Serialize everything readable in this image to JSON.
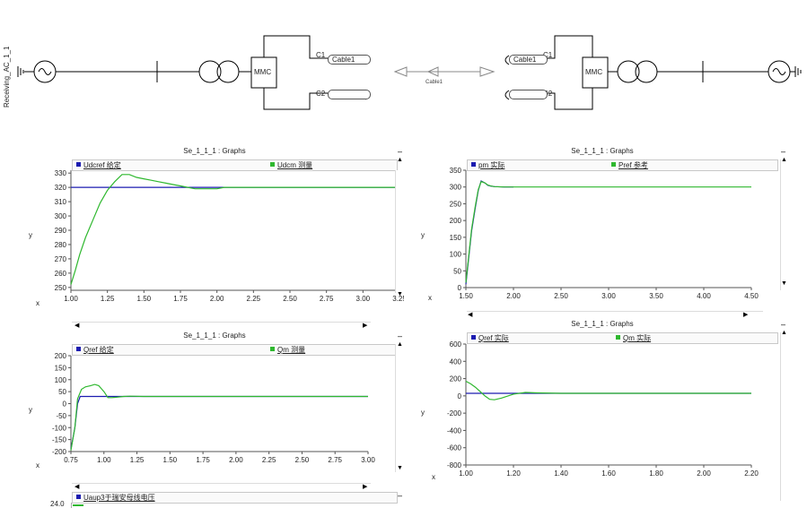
{
  "schematic": {
    "bus_label": "Receiving_AC_1_1",
    "mmc_left": "MMC",
    "mmc_right": "MMC",
    "c1_left": "C1",
    "c2_left": "C2",
    "c1_right": "C1",
    "c2_right": "C2",
    "cable_left": "Cable1",
    "cable_right": "Cable1",
    "cable_center": "Cable1"
  },
  "colors": {
    "blue": "#1c1cb0",
    "green": "#2fb82f",
    "axis": "#555555"
  },
  "chart_data": [
    {
      "type": "line",
      "title": "Se_1_1_1 : Graphs",
      "xlabel": "x",
      "ylabel": "y",
      "xlim": [
        1.0,
        3.25
      ],
      "ylim": [
        248,
        332
      ],
      "xticks": [
        1.0,
        1.25,
        1.5,
        1.75,
        2.0,
        2.25,
        2.5,
        2.75,
        3.0,
        3.25
      ],
      "yticks": [
        250,
        260,
        270,
        280,
        290,
        300,
        310,
        320,
        330
      ],
      "xdec": 2,
      "ydec": 0,
      "legend": [
        {
          "name": "Udcref 给定"
        },
        {
          "name": "Udcm 测量"
        }
      ],
      "series": [
        {
          "name": "Udcref",
          "color": "blue",
          "x": [
            1.0,
            3.25
          ],
          "y": [
            320,
            320
          ]
        },
        {
          "name": "Udcm",
          "color": "green",
          "x": [
            1.0,
            1.03,
            1.06,
            1.1,
            1.15,
            1.2,
            1.25,
            1.3,
            1.35,
            1.4,
            1.45,
            1.5,
            1.55,
            1.6,
            1.65,
            1.7,
            1.75,
            1.8,
            1.85,
            1.9,
            1.95,
            2.0,
            2.05,
            2.1,
            2.15,
            2.2,
            2.3,
            2.5,
            2.75,
            3.0,
            3.25
          ],
          "y": [
            252,
            262,
            273,
            285,
            297,
            309,
            318,
            324,
            329,
            329,
            327,
            326,
            325,
            324,
            323,
            322,
            321,
            320,
            319,
            319,
            319,
            319,
            320,
            320,
            320,
            320,
            320,
            320,
            320,
            320,
            320
          ]
        }
      ]
    },
    {
      "type": "line",
      "title": "Se_1_1_1 : Graphs",
      "xlabel": "x",
      "ylabel": "y",
      "xlim": [
        1.5,
        4.5
      ],
      "ylim": [
        0,
        350
      ],
      "xticks": [
        1.5,
        2.0,
        2.5,
        3.0,
        3.5,
        4.0,
        4.5
      ],
      "yticks": [
        0,
        50,
        100,
        150,
        200,
        250,
        300,
        350
      ],
      "xdec": 2,
      "ydec": 0,
      "legend": [
        {
          "name": "pm 实际"
        },
        {
          "name": "Pref 参考"
        }
      ],
      "series": [
        {
          "name": "pm",
          "color": "blue",
          "x": [
            1.5,
            1.53,
            1.56,
            1.6,
            1.63,
            1.66,
            1.7,
            1.73,
            1.76,
            1.8,
            1.9,
            2.0
          ],
          "y": [
            10,
            90,
            170,
            240,
            290,
            318,
            312,
            305,
            303,
            301,
            300,
            300
          ]
        },
        {
          "name": "Pref",
          "color": "green",
          "x": [
            1.5,
            1.53,
            1.56,
            1.6,
            1.63,
            1.66,
            1.7,
            1.73,
            1.76,
            1.8,
            1.9,
            2.0,
            2.5,
            3.0,
            3.5,
            4.0,
            4.5
          ],
          "y": [
            15,
            95,
            175,
            245,
            292,
            316,
            312,
            306,
            303,
            301,
            300,
            300,
            300,
            300,
            300,
            300,
            300
          ]
        }
      ]
    },
    {
      "type": "line",
      "title": "Se_1_1_1 : Graphs",
      "xlabel": "x",
      "ylabel": "y",
      "xlim": [
        0.75,
        3.0
      ],
      "ylim": [
        -200,
        200
      ],
      "xticks": [
        0.75,
        1.0,
        1.25,
        1.5,
        1.75,
        2.0,
        2.25,
        2.5,
        2.75,
        3.0
      ],
      "yticks": [
        -200,
        -150,
        -100,
        -50,
        0,
        50,
        100,
        150,
        200
      ],
      "xdec": 2,
      "ydec": 0,
      "legend": [
        {
          "name": "Qref 给定"
        },
        {
          "name": "Qm 测量"
        }
      ],
      "series": [
        {
          "name": "Qref",
          "color": "blue",
          "x": [
            0.75,
            0.78,
            0.8,
            0.82,
            3.0
          ],
          "y": [
            -190,
            -100,
            0,
            30,
            30
          ]
        },
        {
          "name": "Qm",
          "color": "green",
          "x": [
            0.75,
            0.78,
            0.8,
            0.83,
            0.86,
            0.9,
            0.93,
            0.96,
            1.0,
            1.03,
            1.06,
            1.1,
            1.15,
            1.2,
            1.3,
            1.5,
            2.0,
            2.5,
            3.0
          ],
          "y": [
            -195,
            -100,
            20,
            60,
            70,
            75,
            80,
            75,
            50,
            25,
            25,
            27,
            30,
            31,
            30,
            30,
            30,
            30,
            30
          ]
        }
      ]
    },
    {
      "type": "line",
      "title": "Se_1_1_1 : Graphs",
      "xlabel": "x",
      "ylabel": "y",
      "xlim": [
        1.0,
        2.2
      ],
      "ylim": [
        -800,
        600
      ],
      "xticks": [
        1.0,
        1.2,
        1.4,
        1.6,
        1.8,
        2.0,
        2.2
      ],
      "yticks": [
        -800,
        -600,
        -400,
        -200,
        0,
        200,
        400,
        600
      ],
      "xdec": 2,
      "ydec": 0,
      "legend": [
        {
          "name": "Qref 实际"
        },
        {
          "name": "Qm 实际"
        }
      ],
      "series": [
        {
          "name": "Qref",
          "color": "blue",
          "x": [
            1.0,
            2.2
          ],
          "y": [
            30,
            30
          ]
        },
        {
          "name": "Qm",
          "color": "green",
          "x": [
            1.0,
            1.02,
            1.04,
            1.06,
            1.08,
            1.1,
            1.12,
            1.15,
            1.2,
            1.25,
            1.3,
            1.4,
            1.5,
            1.6,
            1.8,
            2.0,
            2.2
          ],
          "y": [
            170,
            140,
            100,
            50,
            0,
            -40,
            -45,
            -25,
            20,
            40,
            35,
            30,
            30,
            30,
            30,
            30,
            30
          ]
        }
      ]
    },
    {
      "type": "line",
      "title": "",
      "xlabel": "",
      "ylabel": "",
      "yticks": [
        24.0
      ],
      "ydec": 1,
      "legend": [
        {
          "name": "Uaup3于瑞安母线电压"
        }
      ],
      "series": []
    }
  ]
}
